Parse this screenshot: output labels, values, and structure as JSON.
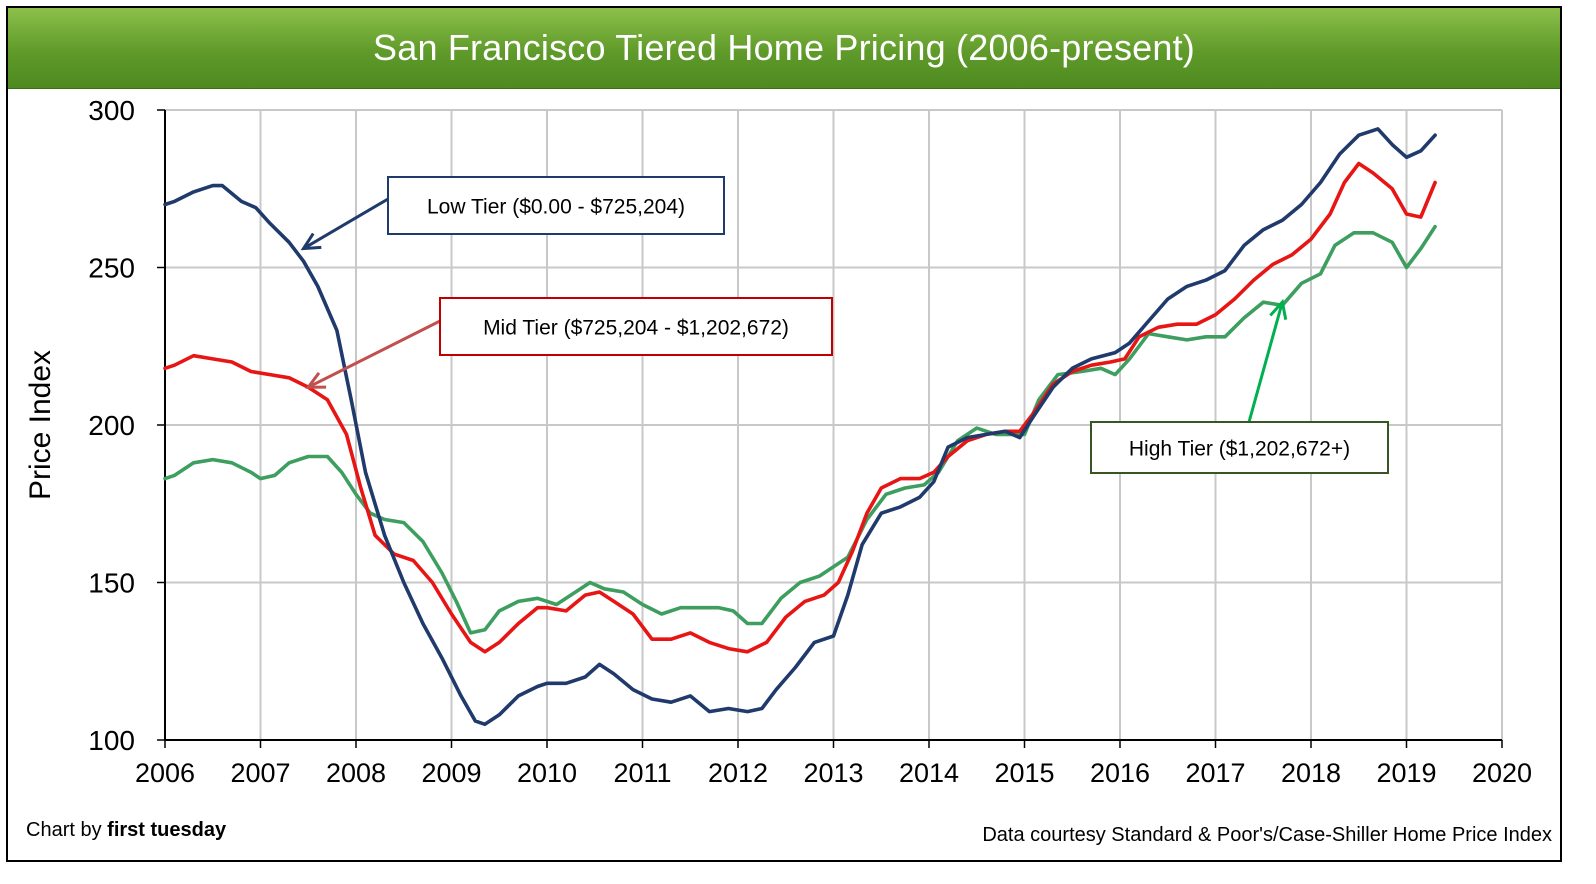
{
  "title": "San Francisco Tiered Home Pricing (2006-present)",
  "credit_left_prefix": "Chart by ",
  "credit_left_brand": "first tuesday",
  "credit_right": "Data courtesy Standard & Poor's/Case-Shiller Home Price Index",
  "colors": {
    "title_bar": "#6ea636",
    "low": "#1f3a6b",
    "mid": "#e81515",
    "high": "#3d9e5f",
    "grid": "#c8c8c8"
  },
  "chart_data": {
    "type": "line",
    "ylabel": "Price Index",
    "xlabel": "",
    "xlim": [
      2006,
      2020
    ],
    "ylim": [
      100,
      300
    ],
    "x_ticks": [
      "2006",
      "2007",
      "2008",
      "2009",
      "2010",
      "2011",
      "2012",
      "2013",
      "2014",
      "2015",
      "2016",
      "2017",
      "2018",
      "2019",
      "2020"
    ],
    "y_ticks": [
      "100",
      "150",
      "200",
      "250",
      "300"
    ],
    "grid": true,
    "series": [
      {
        "name": "Low Tier ($0.00 - $725,204)",
        "color": "#1f3a6b",
        "points": [
          [
            2006.0,
            270
          ],
          [
            2006.1,
            271
          ],
          [
            2006.3,
            274
          ],
          [
            2006.5,
            276
          ],
          [
            2006.6,
            276
          ],
          [
            2006.8,
            271
          ],
          [
            2006.95,
            269
          ],
          [
            2007.1,
            264
          ],
          [
            2007.3,
            258
          ],
          [
            2007.45,
            252
          ],
          [
            2007.6,
            244
          ],
          [
            2007.8,
            230
          ],
          [
            2007.95,
            208
          ],
          [
            2008.1,
            185
          ],
          [
            2008.3,
            165
          ],
          [
            2008.5,
            150
          ],
          [
            2008.7,
            137
          ],
          [
            2008.9,
            126
          ],
          [
            2009.1,
            114
          ],
          [
            2009.25,
            106
          ],
          [
            2009.35,
            105
          ],
          [
            2009.5,
            108
          ],
          [
            2009.7,
            114
          ],
          [
            2009.9,
            117
          ],
          [
            2010.0,
            118
          ],
          [
            2010.2,
            118
          ],
          [
            2010.4,
            120
          ],
          [
            2010.55,
            124
          ],
          [
            2010.7,
            121
          ],
          [
            2010.9,
            116
          ],
          [
            2011.1,
            113
          ],
          [
            2011.3,
            112
          ],
          [
            2011.5,
            114
          ],
          [
            2011.7,
            109
          ],
          [
            2011.9,
            110
          ],
          [
            2012.1,
            109
          ],
          [
            2012.25,
            110
          ],
          [
            2012.4,
            116
          ],
          [
            2012.6,
            123
          ],
          [
            2012.8,
            131
          ],
          [
            2013.0,
            133
          ],
          [
            2013.15,
            146
          ],
          [
            2013.3,
            162
          ],
          [
            2013.5,
            172
          ],
          [
            2013.7,
            174
          ],
          [
            2013.9,
            177
          ],
          [
            2014.05,
            182
          ],
          [
            2014.2,
            193
          ],
          [
            2014.4,
            196
          ],
          [
            2014.6,
            197
          ],
          [
            2014.8,
            198
          ],
          [
            2014.95,
            196
          ],
          [
            2015.1,
            203
          ],
          [
            2015.3,
            212
          ],
          [
            2015.5,
            218
          ],
          [
            2015.7,
            221
          ],
          [
            2015.95,
            223
          ],
          [
            2016.1,
            226
          ],
          [
            2016.3,
            233
          ],
          [
            2016.5,
            240
          ],
          [
            2016.7,
            244
          ],
          [
            2016.9,
            246
          ],
          [
            2017.1,
            249
          ],
          [
            2017.3,
            257
          ],
          [
            2017.5,
            262
          ],
          [
            2017.7,
            265
          ],
          [
            2017.9,
            270
          ],
          [
            2018.1,
            277
          ],
          [
            2018.3,
            286
          ],
          [
            2018.5,
            292
          ],
          [
            2018.7,
            294
          ],
          [
            2018.85,
            289
          ],
          [
            2019.0,
            285
          ],
          [
            2019.15,
            287
          ],
          [
            2019.3,
            292
          ]
        ]
      },
      {
        "name": "Mid Tier ($725,204 - $1,202,672)",
        "color": "#e81515",
        "points": [
          [
            2006.0,
            218
          ],
          [
            2006.1,
            219
          ],
          [
            2006.3,
            222
          ],
          [
            2006.5,
            221
          ],
          [
            2006.7,
            220
          ],
          [
            2006.9,
            217
          ],
          [
            2007.1,
            216
          ],
          [
            2007.3,
            215
          ],
          [
            2007.5,
            212
          ],
          [
            2007.7,
            208
          ],
          [
            2007.9,
            197
          ],
          [
            2008.05,
            180
          ],
          [
            2008.2,
            165
          ],
          [
            2008.4,
            159
          ],
          [
            2008.6,
            157
          ],
          [
            2008.8,
            150
          ],
          [
            2009.0,
            140
          ],
          [
            2009.2,
            131
          ],
          [
            2009.35,
            128
          ],
          [
            2009.5,
            131
          ],
          [
            2009.7,
            137
          ],
          [
            2009.9,
            142
          ],
          [
            2010.0,
            142
          ],
          [
            2010.2,
            141
          ],
          [
            2010.4,
            146
          ],
          [
            2010.55,
            147
          ],
          [
            2010.7,
            144
          ],
          [
            2010.9,
            140
          ],
          [
            2011.1,
            132
          ],
          [
            2011.3,
            132
          ],
          [
            2011.5,
            134
          ],
          [
            2011.7,
            131
          ],
          [
            2011.9,
            129
          ],
          [
            2012.1,
            128
          ],
          [
            2012.3,
            131
          ],
          [
            2012.5,
            139
          ],
          [
            2012.7,
            144
          ],
          [
            2012.9,
            146
          ],
          [
            2013.05,
            150
          ],
          [
            2013.2,
            160
          ],
          [
            2013.35,
            172
          ],
          [
            2013.5,
            180
          ],
          [
            2013.7,
            183
          ],
          [
            2013.9,
            183
          ],
          [
            2014.05,
            185
          ],
          [
            2014.2,
            190
          ],
          [
            2014.4,
            195
          ],
          [
            2014.6,
            197
          ],
          [
            2014.8,
            198
          ],
          [
            2014.95,
            198
          ],
          [
            2015.1,
            204
          ],
          [
            2015.3,
            213
          ],
          [
            2015.5,
            217
          ],
          [
            2015.7,
            219
          ],
          [
            2015.9,
            220
          ],
          [
            2016.05,
            221
          ],
          [
            2016.2,
            228
          ],
          [
            2016.4,
            231
          ],
          [
            2016.6,
            232
          ],
          [
            2016.8,
            232
          ],
          [
            2017.0,
            235
          ],
          [
            2017.2,
            240
          ],
          [
            2017.4,
            246
          ],
          [
            2017.6,
            251
          ],
          [
            2017.8,
            254
          ],
          [
            2018.0,
            259
          ],
          [
            2018.2,
            267
          ],
          [
            2018.35,
            277
          ],
          [
            2018.5,
            283
          ],
          [
            2018.65,
            280
          ],
          [
            2018.85,
            275
          ],
          [
            2019.0,
            267
          ],
          [
            2019.15,
            266
          ],
          [
            2019.3,
            277
          ]
        ]
      },
      {
        "name": "High Tier ($1,202,672+)",
        "color": "#3d9e5f",
        "points": [
          [
            2006.0,
            183
          ],
          [
            2006.1,
            184
          ],
          [
            2006.3,
            188
          ],
          [
            2006.5,
            189
          ],
          [
            2006.7,
            188
          ],
          [
            2006.9,
            185
          ],
          [
            2007.0,
            183
          ],
          [
            2007.15,
            184
          ],
          [
            2007.3,
            188
          ],
          [
            2007.5,
            190
          ],
          [
            2007.7,
            190
          ],
          [
            2007.85,
            185
          ],
          [
            2008.0,
            178
          ],
          [
            2008.15,
            172
          ],
          [
            2008.3,
            170
          ],
          [
            2008.5,
            169
          ],
          [
            2008.7,
            163
          ],
          [
            2008.9,
            153
          ],
          [
            2009.05,
            144
          ],
          [
            2009.2,
            134
          ],
          [
            2009.35,
            135
          ],
          [
            2009.5,
            141
          ],
          [
            2009.7,
            144
          ],
          [
            2009.9,
            145
          ],
          [
            2010.1,
            143
          ],
          [
            2010.3,
            147
          ],
          [
            2010.45,
            150
          ],
          [
            2010.6,
            148
          ],
          [
            2010.8,
            147
          ],
          [
            2011.0,
            143
          ],
          [
            2011.2,
            140
          ],
          [
            2011.4,
            142
          ],
          [
            2011.6,
            142
          ],
          [
            2011.8,
            142
          ],
          [
            2011.95,
            141
          ],
          [
            2012.1,
            137
          ],
          [
            2012.25,
            137
          ],
          [
            2012.45,
            145
          ],
          [
            2012.65,
            150
          ],
          [
            2012.85,
            152
          ],
          [
            2013.0,
            155
          ],
          [
            2013.15,
            158
          ],
          [
            2013.35,
            170
          ],
          [
            2013.55,
            178
          ],
          [
            2013.75,
            180
          ],
          [
            2013.95,
            181
          ],
          [
            2014.1,
            185
          ],
          [
            2014.3,
            195
          ],
          [
            2014.5,
            199
          ],
          [
            2014.7,
            197
          ],
          [
            2014.85,
            197
          ],
          [
            2015.0,
            197
          ],
          [
            2015.15,
            208
          ],
          [
            2015.35,
            216
          ],
          [
            2015.6,
            217
          ],
          [
            2015.8,
            218
          ],
          [
            2015.95,
            216
          ],
          [
            2016.1,
            221
          ],
          [
            2016.3,
            229
          ],
          [
            2016.5,
            228
          ],
          [
            2016.7,
            227
          ],
          [
            2016.9,
            228
          ],
          [
            2017.1,
            228
          ],
          [
            2017.3,
            234
          ],
          [
            2017.5,
            239
          ],
          [
            2017.7,
            238
          ],
          [
            2017.9,
            245
          ],
          [
            2018.1,
            248
          ],
          [
            2018.25,
            257
          ],
          [
            2018.45,
            261
          ],
          [
            2018.65,
            261
          ],
          [
            2018.85,
            258
          ],
          [
            2019.0,
            250
          ],
          [
            2019.15,
            256
          ],
          [
            2019.3,
            263
          ]
        ]
      }
    ],
    "annotations": [
      {
        "text": "Low Tier ($0.00 - $725,204)",
        "color": "#1f3a6b",
        "points_to": [
          2007.45,
          256
        ]
      },
      {
        "text": "Mid Tier ($725,204 - $1,202,672)",
        "color": "#c0504d",
        "points_to": [
          2007.5,
          212
        ]
      },
      {
        "text": "High Tier ($1,202,672+)",
        "color": "#00b050",
        "points_to": [
          2017.7,
          239
        ]
      }
    ]
  }
}
